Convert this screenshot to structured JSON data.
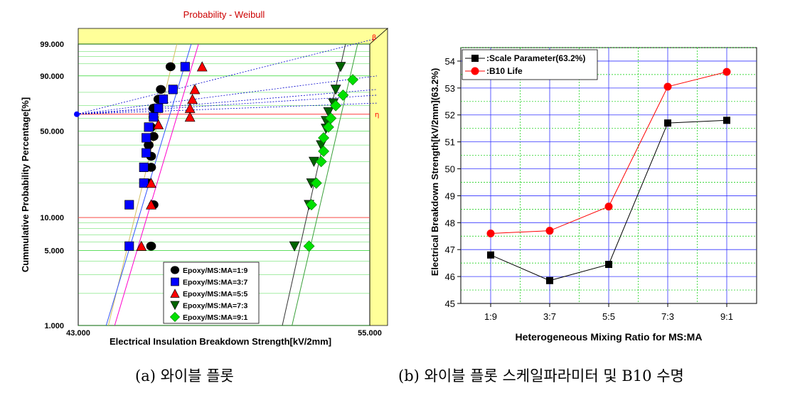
{
  "captions": {
    "left": "(a) 와이블 플롯",
    "right": "(b) 와이블 플롯 스케일파라미터 및 B10 수명"
  },
  "chart_data": [
    {
      "type": "scatter",
      "title": "Probability - Weibull",
      "xlabel": "Electrical Insulation Breakdown Strength[kV/2mm]",
      "ylabel": "Cummulative Probability Percentage[%]",
      "xlim": [
        43,
        55
      ],
      "ylim": [
        1,
        99
      ],
      "y_scale": "weibull",
      "x_ticks": [
        "43.000",
        "55.000"
      ],
      "y_ticks": [
        {
          "value": 99,
          "label": "99.000"
        },
        {
          "value": 90,
          "label": "90.000"
        },
        {
          "value": 50,
          "label": "50.000"
        },
        {
          "value": 10,
          "label": "10.000"
        },
        {
          "value": 5,
          "label": "5.000"
        },
        {
          "value": 1,
          "label": "1.000"
        }
      ],
      "beta_marker": "β",
      "eta_marker": "η",
      "colors": {
        "title": "#cc0000",
        "beta_fill": "#ffff99",
        "eta_line": "#ff0000",
        "grid": "#00cc00",
        "b10_line": "#ff4d4d"
      },
      "series": [
        {
          "name": "Epoxy/MS:MA=1:9",
          "marker": "circle",
          "color": "#000000",
          "fit": [
            [
              44.24,
              1
            ],
            [
              47.06,
              99
            ]
          ],
          "points": [
            [
              46.0,
              5.5
            ],
            [
              46.1,
              13
            ],
            [
              45.9,
              20
            ],
            [
              46.0,
              27
            ],
            [
              46.0,
              33
            ],
            [
              45.9,
              40
            ],
            [
              46.1,
              46
            ],
            [
              46.0,
              53
            ],
            [
              46.1,
              61
            ],
            [
              46.1,
              68
            ],
            [
              46.3,
              75
            ],
            [
              46.4,
              82
            ],
            [
              46.8,
              94
            ]
          ]
        },
        {
          "name": "Epoxy/MS:MA=3:7",
          "marker": "square",
          "color": "#0000ff",
          "fit": [
            [
              44.15,
              1
            ],
            [
              47.65,
              99
            ]
          ],
          "points": [
            [
              45.1,
              5.5
            ],
            [
              45.1,
              13
            ],
            [
              45.7,
              20
            ],
            [
              45.7,
              27
            ],
            [
              45.8,
              35
            ],
            [
              45.8,
              45
            ],
            [
              45.9,
              53
            ],
            [
              46.1,
              61
            ],
            [
              46.3,
              68
            ],
            [
              46.5,
              75
            ],
            [
              46.9,
              82
            ],
            [
              47.4,
              94
            ]
          ]
        },
        {
          "name": "Epoxy/MS:MA=5:5",
          "marker": "triangle-up",
          "color": "#ff0000",
          "fit": [
            [
              44.5,
              1
            ],
            [
              47.95,
              99
            ]
          ],
          "points": [
            [
              45.6,
              5.5
            ],
            [
              46.0,
              13
            ],
            [
              46.0,
              20
            ],
            [
              46.3,
              55
            ],
            [
              47.6,
              61
            ],
            [
              47.6,
              68
            ],
            [
              47.7,
              75
            ],
            [
              47.8,
              82
            ],
            [
              48.1,
              94
            ]
          ]
        },
        {
          "name": "Epoxy/MS:MA=7:3",
          "marker": "triangle-down",
          "color": "#006400",
          "fit": [
            [
              51.4,
              1
            ],
            [
              54.0,
              99
            ]
          ],
          "points": [
            [
              51.9,
              5.5
            ],
            [
              52.5,
              13
            ],
            [
              52.6,
              20
            ],
            [
              52.7,
              30
            ],
            [
              53.0,
              40
            ],
            [
              53.2,
              52
            ],
            [
              53.2,
              58
            ],
            [
              53.3,
              65
            ],
            [
              53.5,
              72
            ],
            [
              53.6,
              82
            ],
            [
              53.8,
              94
            ]
          ]
        },
        {
          "name": "Epoxy/MS:MA=9:1",
          "marker": "diamond",
          "color": "#00e000",
          "fit": [
            [
              51.8,
              1
            ],
            [
              54.5,
              99
            ]
          ],
          "points": [
            [
              52.5,
              5.5
            ],
            [
              52.6,
              13
            ],
            [
              52.8,
              20
            ],
            [
              53.0,
              30
            ],
            [
              53.1,
              36
            ],
            [
              53.1,
              45
            ],
            [
              53.3,
              53
            ],
            [
              53.4,
              60
            ],
            [
              53.6,
              70
            ],
            [
              53.9,
              78
            ],
            [
              54.3,
              88
            ]
          ]
        }
      ]
    },
    {
      "type": "line",
      "xlabel": "Heterogeneous Mixing Ratio for MS:MA",
      "ylabel": "Electrical Breakdown Strength[kV/2mm](63.2%)",
      "categories": [
        "1:9",
        "3:7",
        "5:5",
        "7:3",
        "9:1"
      ],
      "ylim": [
        45,
        54.5
      ],
      "y_ticks": [
        45,
        46,
        47,
        48,
        49,
        50,
        51,
        52,
        53,
        54
      ],
      "grid": true,
      "legend_position": "top-left",
      "series": [
        {
          "name": ":Scale Parameter(63.2%)",
          "marker": "square",
          "color": "#000000",
          "values": [
            46.8,
            45.85,
            46.45,
            51.7,
            51.8
          ]
        },
        {
          "name": ":B10 Life",
          "marker": "circle",
          "color": "#ff0000",
          "values": [
            47.6,
            47.7,
            48.6,
            53.05,
            53.6
          ]
        }
      ]
    }
  ]
}
